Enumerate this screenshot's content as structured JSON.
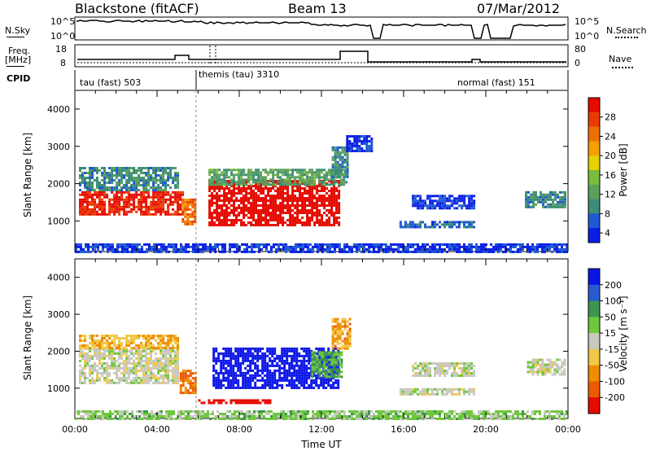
{
  "header": {
    "station": "Blackstone (fitACF)",
    "beam": "Beam 13",
    "date": "07/Mar/2012"
  },
  "summary": {
    "nsky_label": "N.Sky",
    "nsearch_label": "N.Search",
    "freq_label_1": "Freq.",
    "freq_label_2": "[MHz]",
    "nave_label": "Nave",
    "cpid_label": "CPID",
    "nsky_ticks": [
      "10^5",
      "10^0"
    ],
    "nsearch_ticks": [
      "10^5",
      "10^0"
    ],
    "freq_ticks": [
      "18",
      "8"
    ],
    "nave_ticks": [
      "80",
      "0"
    ],
    "cpid_segments": [
      {
        "label": "tau (fast) 503",
        "start_hour": 0.0
      },
      {
        "label": "themis (tau) 3310",
        "start_hour": 6.0
      },
      {
        "label": "normal (fast) 151",
        "start_hour": 19.7
      }
    ]
  },
  "chart_data": [
    {
      "type": "heatmap",
      "title": "",
      "xlabel": "Time UT",
      "ylabel": "Slant Range [km]",
      "xlim_hours": [
        0,
        24
      ],
      "ylim": [
        180,
        4500
      ],
      "yticks": [
        "1000",
        "2000",
        "3000",
        "4000"
      ],
      "colorbar": {
        "label": "Power [dB]",
        "ticks": [
          "28",
          "24",
          "20",
          "16",
          "12",
          "8",
          "4"
        ],
        "colors": [
          "#0a1ee6",
          "#1e5ad2",
          "#3c8c78",
          "#5aa05a",
          "#78be3c",
          "#e6d200",
          "#f5a000",
          "#f06e00",
          "#eb3c00",
          "#e60a00"
        ]
      },
      "regions": [
        {
          "t0": 0.2,
          "t1": 5.2,
          "r0": 1150,
          "r1": 1800,
          "value": 26
        },
        {
          "t0": 0.2,
          "t1": 5.0,
          "r0": 1800,
          "r1": 2450,
          "value": 10
        },
        {
          "t0": 5.2,
          "t1": 5.9,
          "r0": 900,
          "r1": 1600,
          "value": 22
        },
        {
          "t0": 6.5,
          "t1": 12.8,
          "r0": 900,
          "r1": 2100,
          "value": 28
        },
        {
          "t0": 6.5,
          "t1": 13.2,
          "r0": 2000,
          "r1": 2400,
          "value": 12
        },
        {
          "t0": 12.5,
          "t1": 13.3,
          "r0": 2200,
          "r1": 3000,
          "value": 10
        },
        {
          "t0": 13.2,
          "t1": 14.5,
          "r0": 2850,
          "r1": 3300,
          "value": 6
        },
        {
          "t0": 15.8,
          "t1": 19.4,
          "r0": 850,
          "r1": 1000,
          "value": 8
        },
        {
          "t0": 16.4,
          "t1": 19.4,
          "r0": 1350,
          "r1": 1700,
          "value": 6
        },
        {
          "t0": 21.9,
          "t1": 23.9,
          "r0": 1400,
          "r1": 1800,
          "value": 10
        },
        {
          "t0": 0.0,
          "t1": 24.0,
          "r0": 200,
          "r1": 400,
          "value": 6
        }
      ]
    },
    {
      "type": "heatmap",
      "title": "",
      "xlabel": "Time UT",
      "ylabel": "Slant Range [km]",
      "xlim_hours": [
        0,
        24
      ],
      "ylim": [
        180,
        4500
      ],
      "yticks": [
        "1000",
        "2000",
        "3000",
        "4000"
      ],
      "xticks": [
        "00:00",
        "04:00",
        "08:00",
        "12:00",
        "16:00",
        "20:00",
        "00:00"
      ],
      "colorbar": {
        "label": "Velocity [m s⁻¹]",
        "ticks": [
          "200",
          "100",
          "50",
          "15",
          "-15",
          "-50",
          "-100",
          "-200"
        ],
        "colors": [
          "#0a14e6",
          "#285ad2",
          "#3c9650",
          "#6ec83c",
          "#c8c8c0",
          "#f0c846",
          "#f08c00",
          "#eb5a00",
          "#e60a00"
        ]
      },
      "regions": [
        {
          "t0": 0.2,
          "t1": 5.0,
          "r0": 1150,
          "r1": 2100,
          "value": 0
        },
        {
          "t0": 0.2,
          "t1": 5.0,
          "r0": 2100,
          "r1": 2450,
          "value": -60
        },
        {
          "t0": 5.1,
          "t1": 5.9,
          "r0": 900,
          "r1": 1500,
          "value": -120
        },
        {
          "t0": 6.7,
          "t1": 12.8,
          "r0": 1000,
          "r1": 2100,
          "value": 220
        },
        {
          "t0": 11.5,
          "t1": 13.0,
          "r0": 1300,
          "r1": 2000,
          "value": 70
        },
        {
          "t0": 12.5,
          "t1": 13.4,
          "r0": 2100,
          "r1": 2900,
          "value": -80
        },
        {
          "t0": 15.8,
          "t1": 19.4,
          "r0": 850,
          "r1": 1000,
          "value": 0
        },
        {
          "t0": 16.4,
          "t1": 19.4,
          "r0": 1350,
          "r1": 1700,
          "value": 5
        },
        {
          "t0": 22.0,
          "t1": 23.9,
          "r0": 1400,
          "r1": 1800,
          "value": 0
        },
        {
          "t0": 6.0,
          "t1": 9.5,
          "r0": 580,
          "r1": 700,
          "value": -220
        },
        {
          "t0": 0.0,
          "t1": 24.0,
          "r0": 200,
          "r1": 400,
          "value": 40
        }
      ]
    }
  ]
}
